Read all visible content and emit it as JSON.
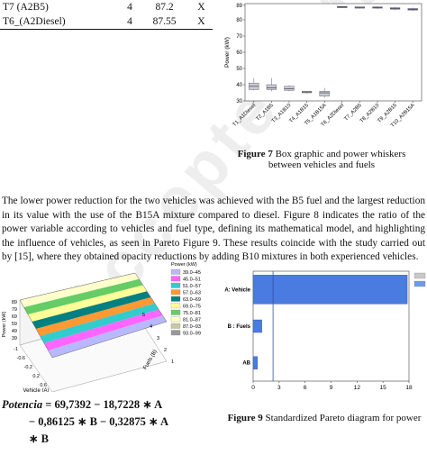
{
  "table": {
    "rows": [
      {
        "label": "T7 (A2B5)",
        "c2": "4",
        "c3": "87.2",
        "c4": "X"
      },
      {
        "label": "T6_(A2Diesel)",
        "c2": "4",
        "c3": "87.55",
        "c4": "X"
      }
    ]
  },
  "figure7": {
    "caption_bold": "Figure 7",
    "caption_line1": " Box graphic and power whiskers",
    "caption_line2": "between vehicles and fuels",
    "chart_data": {
      "type": "box",
      "ylabel": "Power (kW)",
      "ylim": [
        30,
        90
      ],
      "yticks": [
        30,
        40,
        50,
        60,
        70,
        80,
        89
      ],
      "categories": [
        "T1_A1Diesel",
        "T2_A1B5",
        "T3_A1B10",
        "T4_A1B15",
        "T5_A1B15A",
        "T6_A2Diesel",
        "T7_A2B5",
        "T8_A2B10",
        "T9_A2B15",
        "T10_A2B15A"
      ],
      "boxes": [
        {
          "min": 36.5,
          "q1": 37,
          "median": 39,
          "q3": 41,
          "max": 44
        },
        {
          "min": 36,
          "q1": 37,
          "median": 38,
          "q3": 40,
          "max": 44
        },
        {
          "min": 36,
          "q1": 36.5,
          "median": 37.5,
          "q3": 39,
          "max": 39.5
        },
        {
          "min": 34.5,
          "q1": 35,
          "median": 35.5,
          "q3": 36,
          "max": 36
        },
        {
          "min": 32,
          "q1": 33,
          "median": 35,
          "q3": 36,
          "max": 38
        },
        {
          "min": 87.5,
          "q1": 87.8,
          "median": 88,
          "q3": 88.2,
          "max": 88.5
        },
        {
          "min": 87.2,
          "q1": 87.5,
          "median": 87.7,
          "q3": 88,
          "max": 88.2
        },
        {
          "min": 86.8,
          "q1": 87.2,
          "median": 87.5,
          "q3": 88,
          "max": 88.3
        },
        {
          "min": 86,
          "q1": 86.5,
          "median": 87,
          "q3": 87.5,
          "max": 88
        },
        {
          "min": 85.5,
          "q1": 86,
          "median": 86.5,
          "q3": 87,
          "max": 87.5
        }
      ]
    }
  },
  "paragraph": {
    "text": "The lower power reduction for the two vehicles was achieved with the B5 fuel and the largest reduction in its value with the use of the B15A mixture compared to diesel. Figure 8 indicates the ratio of the power variable according to vehicles and fuel type, defining its mathematical model, and highlighting the influence of vehicles, as seen in Pareto Figure 9. These results coincide with the study carried out by [15], where they obtained opacity reductions by adding B10 mixtures in both experienced vehicles."
  },
  "figure8": {
    "chart_data": {
      "type": "surface",
      "legend_title": "Power (kW)",
      "legend": [
        {
          "label": "39.0–45",
          "color": "#b8b8ff"
        },
        {
          "label": "45.0–51",
          "color": "#ff66ff"
        },
        {
          "label": "51.0–57",
          "color": "#33cccc"
        },
        {
          "label": "57.0–63",
          "color": "#ff9933"
        },
        {
          "label": "63.0–69",
          "color": "#008080"
        },
        {
          "label": "69.0–75",
          "color": "#ffff99"
        },
        {
          "label": "75.0–81",
          "color": "#66cc66"
        },
        {
          "label": "81.0–87",
          "color": "#ffffcc"
        },
        {
          "label": "87.0–93",
          "color": "#c8c8a0"
        },
        {
          "label": "93.0–99",
          "color": "#999999"
        }
      ],
      "zlabel": "Power (kW)",
      "zticks": [
        "89",
        "79",
        "69",
        "59",
        "49",
        "39"
      ],
      "xlabel": "Vehicle (A)",
      "xticks": [
        "-1",
        "-0.6",
        "-0.2",
        "0.2",
        "0.6",
        "1"
      ],
      "ylabel": "Fuels (B)",
      "yticks": [
        "1",
        "2",
        "3",
        "4",
        "5"
      ]
    }
  },
  "equation": {
    "lhs": "Potencia",
    "line1": " = 69,7392 − 18,7228 ∗ A",
    "line2": "− 0,86125 ∗ B − 0,32875 ∗ A",
    "line3": "∗ B"
  },
  "figure9": {
    "caption_bold": "Figure 9",
    "caption_text": " Standardized Pareto diagram for power",
    "chart_data": {
      "type": "bar",
      "orientation": "horizontal",
      "categories": [
        "A: Vehicle",
        "B : Fuels",
        "AB"
      ],
      "values": [
        17.8,
        1.0,
        0.5
      ],
      "xlim": [
        0,
        18
      ],
      "xticks": [
        0,
        3,
        6,
        9,
        12,
        15,
        18
      ],
      "reference_line": 2.3,
      "colors": {
        "bar": "#4a7be0",
        "legend1": "#c8c8c8",
        "legend2": "#6f9ae6"
      }
    }
  },
  "watermark": "Accepted Manuscript"
}
